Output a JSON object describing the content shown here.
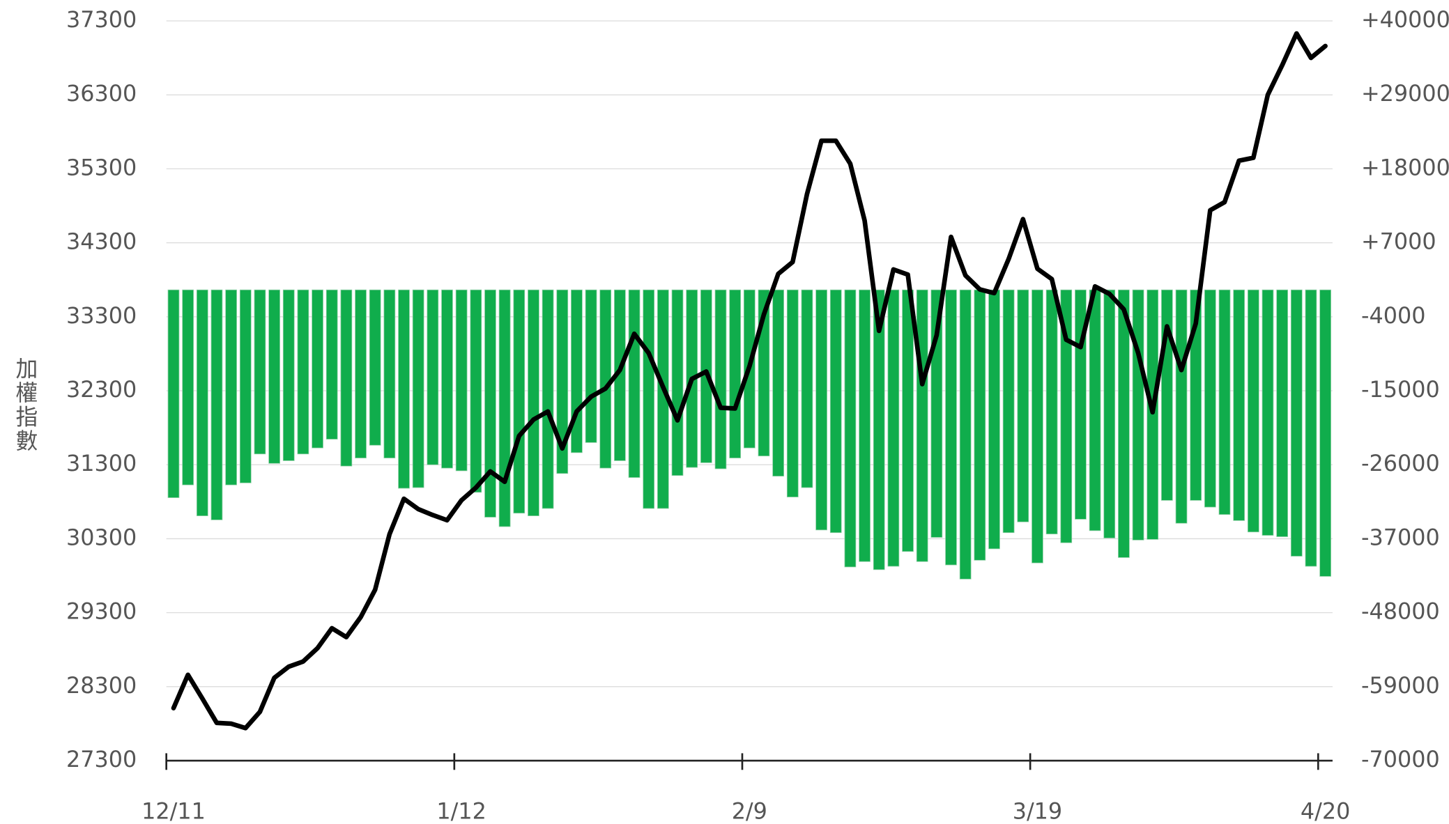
{
  "chart_data": {
    "type": "combo",
    "y_label": "加權指數",
    "categories": [
      "12/11",
      null,
      null,
      null,
      null,
      null,
      null,
      null,
      null,
      null,
      null,
      null,
      null,
      null,
      null,
      null,
      null,
      null,
      null,
      null,
      "1/12",
      null,
      null,
      null,
      null,
      null,
      null,
      null,
      null,
      null,
      null,
      null,
      null,
      null,
      null,
      null,
      null,
      null,
      null,
      null,
      "2/9",
      null,
      null,
      null,
      null,
      null,
      null,
      null,
      null,
      null,
      null,
      null,
      null,
      null,
      null,
      null,
      null,
      null,
      null,
      null,
      "3/19",
      null,
      null,
      null,
      null,
      null,
      null,
      null,
      null,
      null,
      null,
      null,
      null,
      null,
      null,
      null,
      null,
      null,
      null,
      null,
      "4/20"
    ],
    "ylim": [
      27300,
      37300
    ],
    "yticks": [
      27300,
      28300,
      29300,
      30300,
      31300,
      32300,
      33300,
      34300,
      35300,
      36300,
      37300
    ],
    "y2lim": [
      -70000,
      40000
    ],
    "y2ticks": [
      -70000,
      -59000,
      -48000,
      -37000,
      -26000,
      -15000,
      -4000,
      {
        "value": 7000,
        "label": "+7000"
      },
      {
        "value": 18000,
        "label": "+18000"
      },
      {
        "value": 29000,
        "label": "+29000"
      },
      {
        "value": 40000,
        "label": "+40000"
      }
    ],
    "grid": true,
    "series": [
      {
        "type": "bar",
        "axis": "y2",
        "color": "#10ad4c",
        "values": [
          -30900,
          -29000,
          -33600,
          -34200,
          -29000,
          -28700,
          -24400,
          -25800,
          -25400,
          -24400,
          -23500,
          -22200,
          -26200,
          -25000,
          -23100,
          -25000,
          -29500,
          -29400,
          -26000,
          -26500,
          -26900,
          -30100,
          -33800,
          -35200,
          -33200,
          -33600,
          -32500,
          -27300,
          -24200,
          -22700,
          -26500,
          -25400,
          -27900,
          -32500,
          -32500,
          -27600,
          -26400,
          -25700,
          -26600,
          -25000,
          -23500,
          -24700,
          -27700,
          -30800,
          -29400,
          -35700,
          -36100,
          -41200,
          -40400,
          -41600,
          -41100,
          -38900,
          -40400,
          -36800,
          -40900,
          -43000,
          -40200,
          -38500,
          -36100,
          -34500,
          -40600,
          -36300,
          -37600,
          -34100,
          -35800,
          -36900,
          -39800,
          -37200,
          -37100,
          -31300,
          -34700,
          -31300,
          -32300,
          -33400,
          -34300,
          -36000,
          -36500,
          -36700,
          -39600,
          -41100,
          -42600
        ]
      },
      {
        "type": "line",
        "axis": "y",
        "color": "#000000",
        "values": [
          28010,
          28460,
          28140,
          27810,
          27800,
          27740,
          27960,
          28420,
          28570,
          28640,
          28820,
          29090,
          28970,
          29240,
          29610,
          30360,
          30840,
          30700,
          30620,
          30550,
          30820,
          30990,
          31210,
          31070,
          31690,
          31910,
          32020,
          31520,
          32020,
          32220,
          32330,
          32580,
          33070,
          32810,
          32350,
          31900,
          32460,
          32560,
          32070,
          32060,
          32630,
          33330,
          33880,
          34040,
          34960,
          35680,
          35680,
          35370,
          34600,
          33110,
          33940,
          33870,
          32390,
          33050,
          34380,
          33860,
          33670,
          33620,
          34080,
          34620,
          33950,
          33810,
          32990,
          32890,
          33710,
          33610,
          33400,
          32810,
          32010,
          33170,
          32580,
          33210,
          34740,
          34850,
          35410,
          35450,
          36300,
          36700,
          37130,
          36800,
          36960
        ]
      }
    ]
  }
}
